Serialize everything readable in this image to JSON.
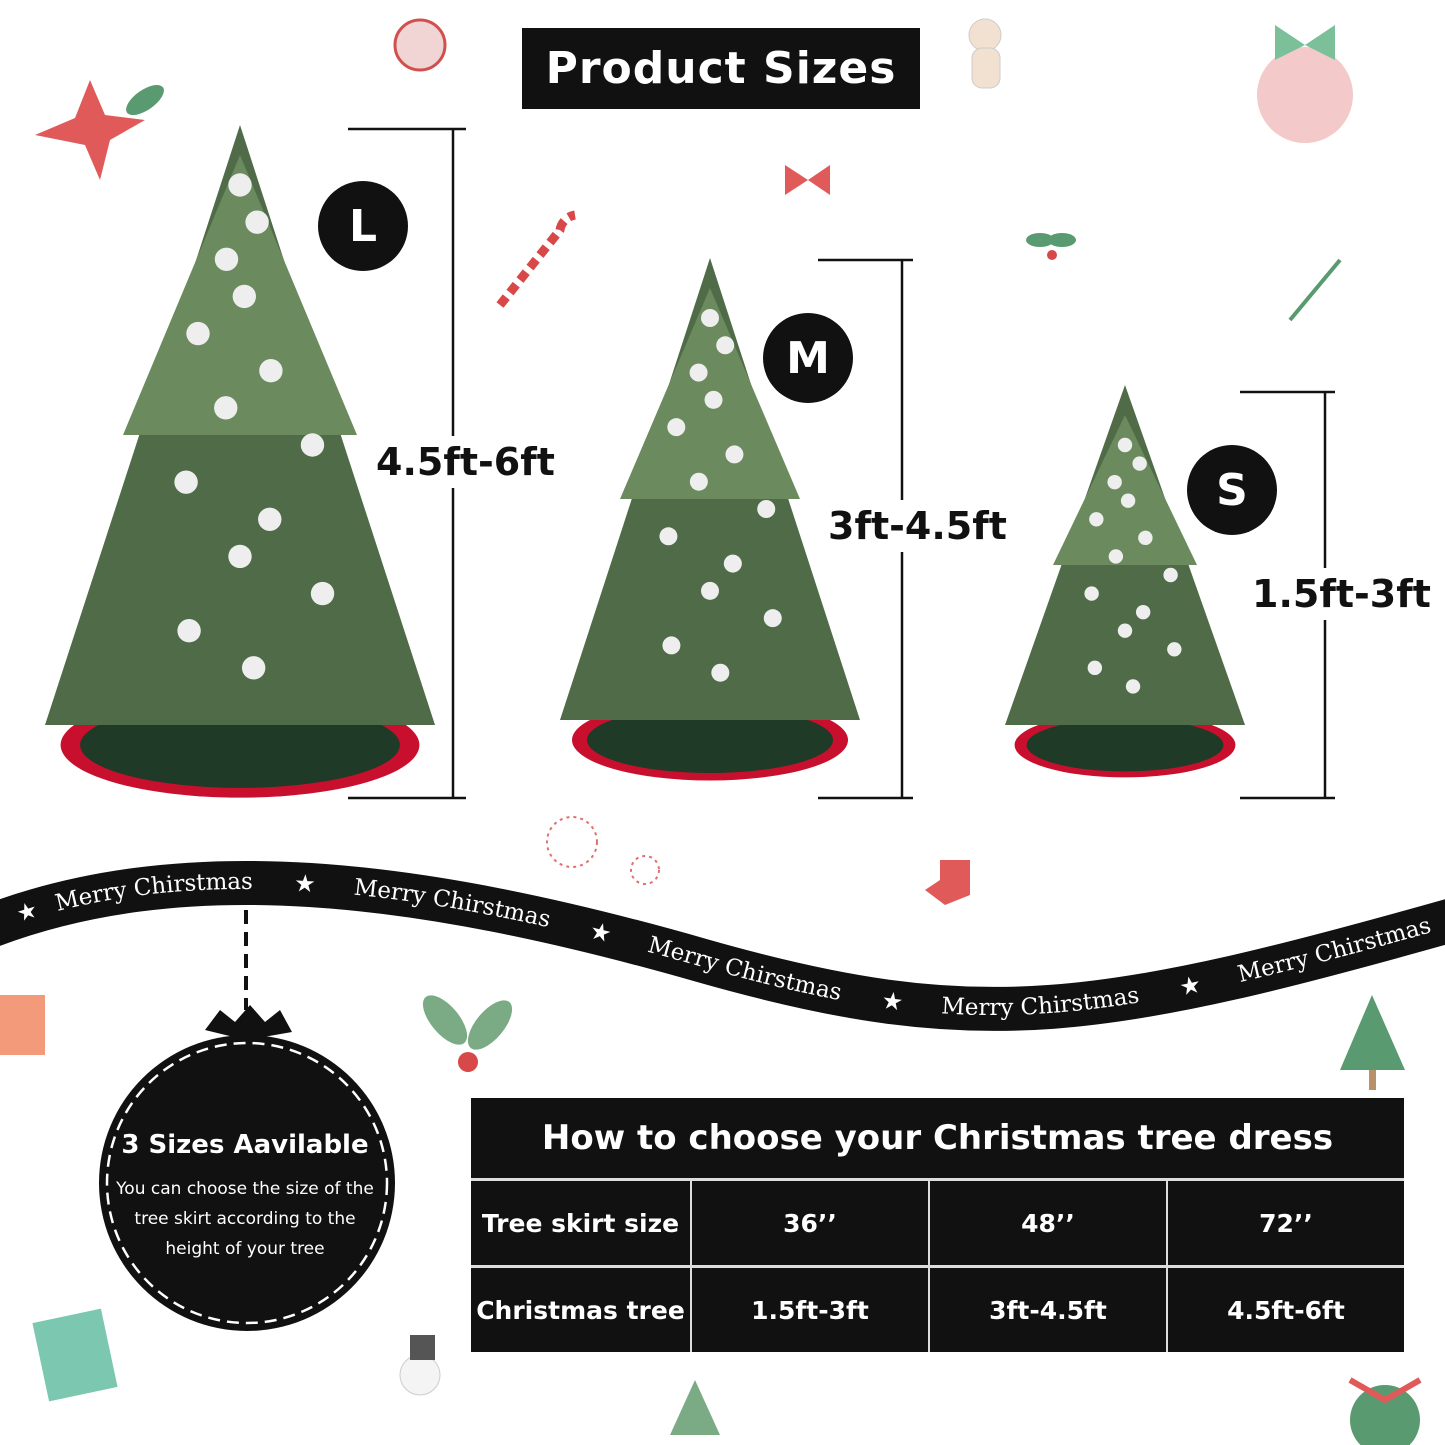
{
  "title": "Product Sizes",
  "sizes": [
    {
      "badge": "L",
      "range": "4.5ft-6ft"
    },
    {
      "badge": "M",
      "range": "3ft-4.5ft"
    },
    {
      "badge": "S",
      "range": "1.5ft-3ft"
    }
  ],
  "ribbon": {
    "labels": [
      "Merry Chirstmas",
      "Merry Chirstmas",
      "Merry Chirstmas",
      "Merry Chirstmas",
      "Merry Chirstmas"
    ],
    "star": "★"
  },
  "ornament": {
    "heading": "3 Sizes Aavilable",
    "body": "You can choose the size of the tree skirt according to the height of your tree"
  },
  "table": {
    "title": "How to choose your Christmas tree dress",
    "rows": [
      {
        "label": "Tree skirt size",
        "values": [
          "36’’",
          "48’’",
          "72’’"
        ]
      },
      {
        "label": "Christmas tree",
        "values": [
          "1.5ft-3ft",
          "3ft-4.5ft",
          "4.5ft-6ft"
        ]
      }
    ]
  },
  "colors": {
    "black": "#111111",
    "tree_green": "#4f6b48",
    "skirt_red": "#c8102e",
    "skirt_green": "#1f3a26"
  }
}
